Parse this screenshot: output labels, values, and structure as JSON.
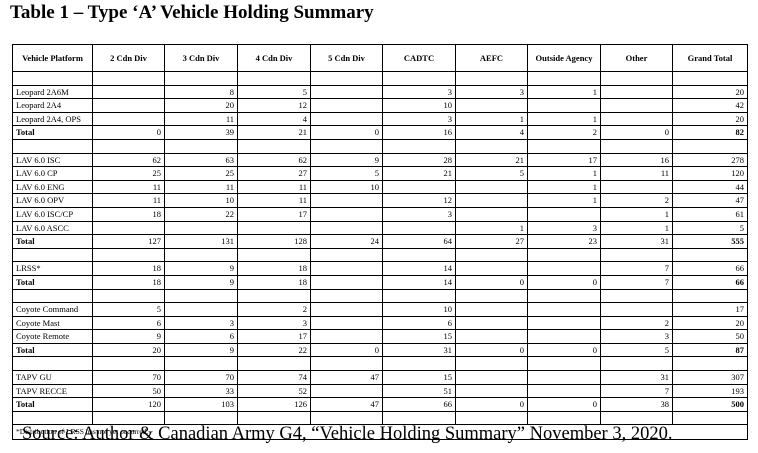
{
  "title": "Table 1 – Type ‘A’ Vehicle Holding Summary",
  "columns": [
    "Vehicle Platform",
    "2 Cdn Div",
    "3 Cdn Div",
    "4 Cdn Div",
    "5 Cdn Div",
    "CADTC",
    "AEFC",
    "Outside Agency",
    "Other",
    "Grand Total"
  ],
  "groups": [
    {
      "rows": [
        {
          "platform": "Leopard 2A6M",
          "values": [
            "",
            "8",
            "5",
            "",
            "3",
            "3",
            "1",
            "",
            "20"
          ]
        },
        {
          "platform": "Leopard 2A4",
          "values": [
            "",
            "20",
            "12",
            "",
            "10",
            "",
            "",
            "",
            "42"
          ]
        },
        {
          "platform": "Leopard 2A4, OPS",
          "values": [
            "",
            "11",
            "4",
            "",
            "3",
            "1",
            "1",
            "",
            "20"
          ]
        },
        {
          "platform": "Total",
          "total": true,
          "values": [
            "0",
            "39",
            "21",
            "0",
            "16",
            "4",
            "2",
            "0",
            "82"
          ]
        }
      ]
    },
    {
      "rows": [
        {
          "platform": "LAV 6.0 ISC",
          "values": [
            "62",
            "63",
            "62",
            "9",
            "28",
            "21",
            "17",
            "16",
            "278"
          ]
        },
        {
          "platform": "LAV 6.0 CP",
          "values": [
            "25",
            "25",
            "27",
            "5",
            "21",
            "5",
            "1",
            "11",
            "120"
          ]
        },
        {
          "platform": "LAV 6.0 ENG",
          "values": [
            "11",
            "11",
            "11",
            "10",
            "",
            "",
            "1",
            "",
            "44"
          ]
        },
        {
          "platform": "LAV 6.0 OPV",
          "values": [
            "11",
            "10",
            "11",
            "",
            "12",
            "",
            "1",
            "2",
            "47"
          ]
        },
        {
          "platform": "LAV 6.0 ISC/CP",
          "values": [
            "18",
            "22",
            "17",
            "",
            "3",
            "",
            "",
            "1",
            "61"
          ]
        },
        {
          "platform": "LAV 6.0 ASCC",
          "values": [
            "",
            "",
            "",
            "",
            "",
            "1",
            "3",
            "1",
            "5"
          ]
        },
        {
          "platform": "Total",
          "total": true,
          "values": [
            "127",
            "131",
            "128",
            "24",
            "64",
            "27",
            "23",
            "31",
            "555"
          ]
        }
      ]
    },
    {
      "rows": [
        {
          "platform": "LRSS*",
          "values": [
            "18",
            "9",
            "18",
            "",
            "14",
            "",
            "",
            "7",
            "66"
          ]
        },
        {
          "platform": "Total",
          "total": true,
          "values": [
            "18",
            "9",
            "18",
            "",
            "14",
            "0",
            "0",
            "7",
            "66"
          ]
        }
      ]
    },
    {
      "rows": [
        {
          "platform": "Coyote Command",
          "values": [
            "5",
            "",
            "2",
            "",
            "10",
            "",
            "",
            "",
            "17"
          ]
        },
        {
          "platform": "Coyote Mast",
          "values": [
            "6",
            "3",
            "3",
            "",
            "6",
            "",
            "",
            "2",
            "20"
          ]
        },
        {
          "platform": "Coyote Remote",
          "values": [
            "9",
            "6",
            "17",
            "",
            "15",
            "",
            "",
            "3",
            "50"
          ]
        },
        {
          "platform": "Total",
          "total": true,
          "values": [
            "20",
            "9",
            "22",
            "0",
            "31",
            "0",
            "0",
            "5",
            "87"
          ]
        }
      ]
    },
    {
      "rows": [
        {
          "platform": "TAPV GU",
          "values": [
            "70",
            "70",
            "74",
            "47",
            "15",
            "",
            "",
            "31",
            "307"
          ]
        },
        {
          "platform": "TAPV RECCE",
          "values": [
            "50",
            "33",
            "52",
            "",
            "51",
            "",
            "",
            "7",
            "193"
          ]
        },
        {
          "platform": "Total",
          "total": true,
          "values": [
            "120",
            "103",
            "126",
            "47",
            "66",
            "0",
            "0",
            "38",
            "500"
          ]
        }
      ]
    }
  ],
  "footnote": "*Distribution of LRSS has not yet occurred.",
  "source": "Source: Author & Canadian Army G4, “Vehicle Holding Summary” November 3, 2020."
}
